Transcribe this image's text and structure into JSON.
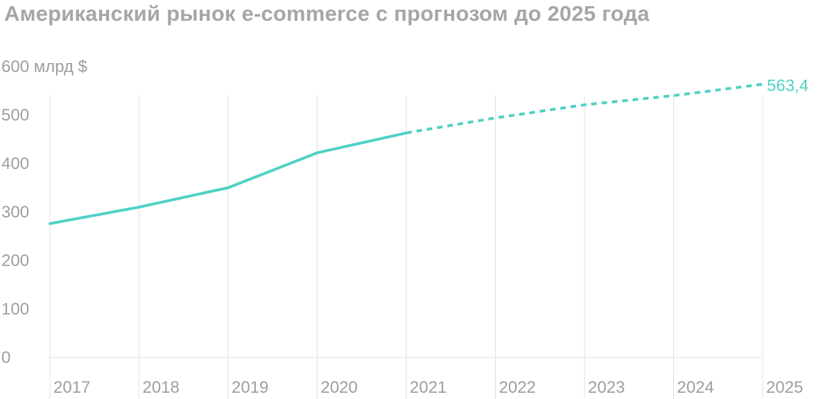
{
  "chart_data": {
    "type": "line",
    "title": "Американский рынок e-commerce с прогнозом до 2025 года",
    "y_unit_label": "600 млрд $",
    "x": [
      "2017",
      "2018",
      "2019",
      "2020",
      "2021",
      "2022",
      "2023",
      "2024",
      "2025"
    ],
    "series": [
      {
        "values": [
          276,
          310,
          350,
          422,
          463,
          494,
          521,
          540,
          563.4
        ],
        "actual_through": "2021",
        "forecast_from": "2021"
      }
    ],
    "yticks": [
      "0",
      "100",
      "200",
      "300",
      "400",
      "500"
    ],
    "ylim": [
      0,
      600
    ],
    "grid": "vertical",
    "annotations": [
      {
        "x": "2025",
        "text": "563,4"
      }
    ],
    "colors": {
      "line": "#4fd1c5",
      "grid": "#e0e0e0",
      "text": "#9e9e9e"
    }
  }
}
